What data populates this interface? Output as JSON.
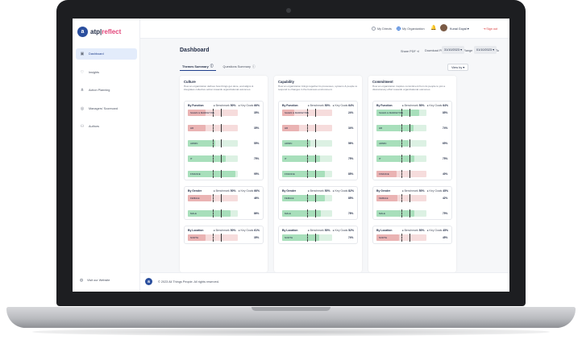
{
  "app": {
    "logo_letter": "a",
    "name_left": "atp",
    "name_right": "reflect"
  },
  "sidebar": {
    "items": [
      {
        "label": "Dashboard",
        "icon": "dashboard-icon"
      },
      {
        "label": "Insights",
        "icon": "insights-icon"
      },
      {
        "label": "Action Planning",
        "icon": "action-planning-icon"
      },
      {
        "label": "Managers' Scorecard",
        "icon": "scorecard-icon"
      },
      {
        "label": "Authors",
        "icon": "authors-icon"
      }
    ],
    "visit_label": "Visit our Website"
  },
  "topbar": {
    "my_directs": "My Directs",
    "my_organization": "My Organization",
    "user_name": "Kunal Goyal",
    "sign_out": "Sign out"
  },
  "header": {
    "title": "Dashboard",
    "share_pdf": "Share PDF",
    "download_pdf": "Download PDF",
    "date_range_label": "Date Range",
    "date_from": "01/10/2023",
    "to_label": "To",
    "date_to": "31/10/2023",
    "tab_themes": "Themes Summary",
    "tab_questions": "Questions Summary",
    "view_by": "View by"
  },
  "legend": {
    "benchmark": "Benchmark",
    "key_goals": "Key Goals"
  },
  "themes": [
    {
      "title": "Culture",
      "desc": "How an organization defines how things get done, and aligns & integrates collective action towards organizational outcomes.",
      "groups": [
        {
          "name": "By Function",
          "benchmark": "50%",
          "score": "66%",
          "rows": [
            {
              "label": "SALES & MARKETING",
              "value": "35%",
              "pct": 35,
              "tone": "red"
            },
            {
              "label": "HR",
              "value": "35%",
              "pct": 35,
              "tone": "red"
            },
            {
              "label": "ADMIN",
              "value": "55%",
              "pct": 55,
              "tone": "green"
            },
            {
              "label": "IT",
              "value": "75%",
              "pct": 75,
              "tone": "green"
            },
            {
              "label": "FINANCE",
              "value": "95%",
              "pct": 95,
              "tone": "green"
            }
          ]
        },
        {
          "name": "By Gender",
          "benchmark": "50%",
          "score": "66%",
          "rows": [
            {
              "label": "FEMALE",
              "value": "46%",
              "pct": 46,
              "tone": "red"
            },
            {
              "label": "MALE",
              "value": "86%",
              "pct": 86,
              "tone": "green"
            }
          ]
        },
        {
          "name": "By Location",
          "benchmark": "50%",
          "score": "61%",
          "rows": [
            {
              "label": "NORTH",
              "value": "35%",
              "pct": 35,
              "tone": "red"
            }
          ]
        }
      ]
    },
    {
      "title": "Capability",
      "desc": "How an organization brings together its processes, systems & people to respond to changes in the business environment.",
      "groups": [
        {
          "name": "By Function",
          "benchmark": "50%",
          "score": "64%",
          "rows": [
            {
              "label": "SALES & MARKETING",
              "value": "24%",
              "pct": 24,
              "tone": "red"
            },
            {
              "label": "HR",
              "value": "34%",
              "pct": 34,
              "tone": "red"
            },
            {
              "label": "ADMIN",
              "value": "56%",
              "pct": 56,
              "tone": "green"
            },
            {
              "label": "IT",
              "value": "75%",
              "pct": 75,
              "tone": "green"
            },
            {
              "label": "FINANCE",
              "value": "85%",
              "pct": 85,
              "tone": "green"
            }
          ]
        },
        {
          "name": "By Gender",
          "benchmark": "50%",
          "score": "82%",
          "rows": [
            {
              "label": "FEMALE",
              "value": "85%",
              "pct": 85,
              "tone": "green"
            },
            {
              "label": "MALE",
              "value": "78%",
              "pct": 78,
              "tone": "green"
            }
          ]
        },
        {
          "name": "By Location",
          "benchmark": "50%",
          "score": "52%",
          "rows": [
            {
              "label": "NORTH",
              "value": "74%",
              "pct": 74,
              "tone": "green"
            }
          ]
        }
      ]
    },
    {
      "title": "Commitment",
      "desc": "How an organization inspires commitment from its people to join a discretionary effort towards organizational outcomes.",
      "groups": [
        {
          "name": "By Function",
          "benchmark": "50%",
          "score": "64%",
          "rows": [
            {
              "label": "SALES & MARKETING",
              "value": "85%",
              "pct": 85,
              "tone": "green"
            },
            {
              "label": "HR",
              "value": "74%",
              "pct": 74,
              "tone": "green"
            },
            {
              "label": "ADMIN",
              "value": "65%",
              "pct": 65,
              "tone": "green"
            },
            {
              "label": "IT",
              "value": "75%",
              "pct": 75,
              "tone": "green"
            },
            {
              "label": "FINANCE",
              "value": "40%",
              "pct": 40,
              "tone": "red"
            }
          ]
        },
        {
          "name": "By Gender",
          "benchmark": "50%",
          "score": "45%",
          "rows": [
            {
              "label": "FEMALE",
              "value": "42%",
              "pct": 42,
              "tone": "red"
            },
            {
              "label": "MALE",
              "value": "75%",
              "pct": 75,
              "tone": "green"
            }
          ]
        },
        {
          "name": "By Location",
          "benchmark": "50%",
          "score": "45%",
          "rows": [
            {
              "label": "NORTH",
              "value": "45%",
              "pct": 45,
              "tone": "red"
            }
          ]
        }
      ]
    }
  ],
  "footer": {
    "logo_letter": "a",
    "copyright": "© 2023 All Things People. All rights reserved."
  },
  "colors": {
    "brand": "#2b4f9e",
    "accent": "#e2457a",
    "red_fill": "#eab3b3",
    "green_fill": "#a8dfbb",
    "sign_out": "#d93b3b"
  }
}
